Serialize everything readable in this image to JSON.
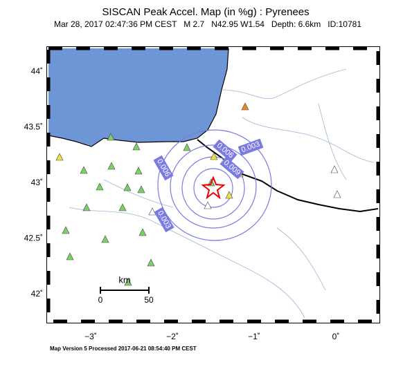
{
  "map": {
    "title": "SISCAN Peak Accel. Map (in %g) : Pyrenees",
    "subtitle": "Mar 28, 2017 02:47:36 PM CEST   M 2.7   N42.95 W1.54   Depth: 6.6km   ID:10781",
    "lat_ticks": [
      {
        "value": 44,
        "label": "44˚"
      },
      {
        "value": 43.5,
        "label": "43.5˚"
      },
      {
        "value": 43,
        "label": "43˚"
      },
      {
        "value": 42.5,
        "label": "42.5˚"
      },
      {
        "value": 42,
        "label": "42˚"
      }
    ],
    "lon_ticks": [
      {
        "value": -3,
        "label": "−3˚"
      },
      {
        "value": -2,
        "label": "−2˚"
      },
      {
        "value": -1,
        "label": "−1˚"
      },
      {
        "value": 0,
        "label": "0˚"
      }
    ],
    "contour_labels": [
      "0.003",
      "0.006",
      "0.009",
      "0.006",
      "0.003"
    ],
    "scale": {
      "unit": "km",
      "start": "0",
      "end": "50"
    },
    "footer": "Map Version 5 Processed 2017-06-21 08:54:40 PM CEST"
  }
}
